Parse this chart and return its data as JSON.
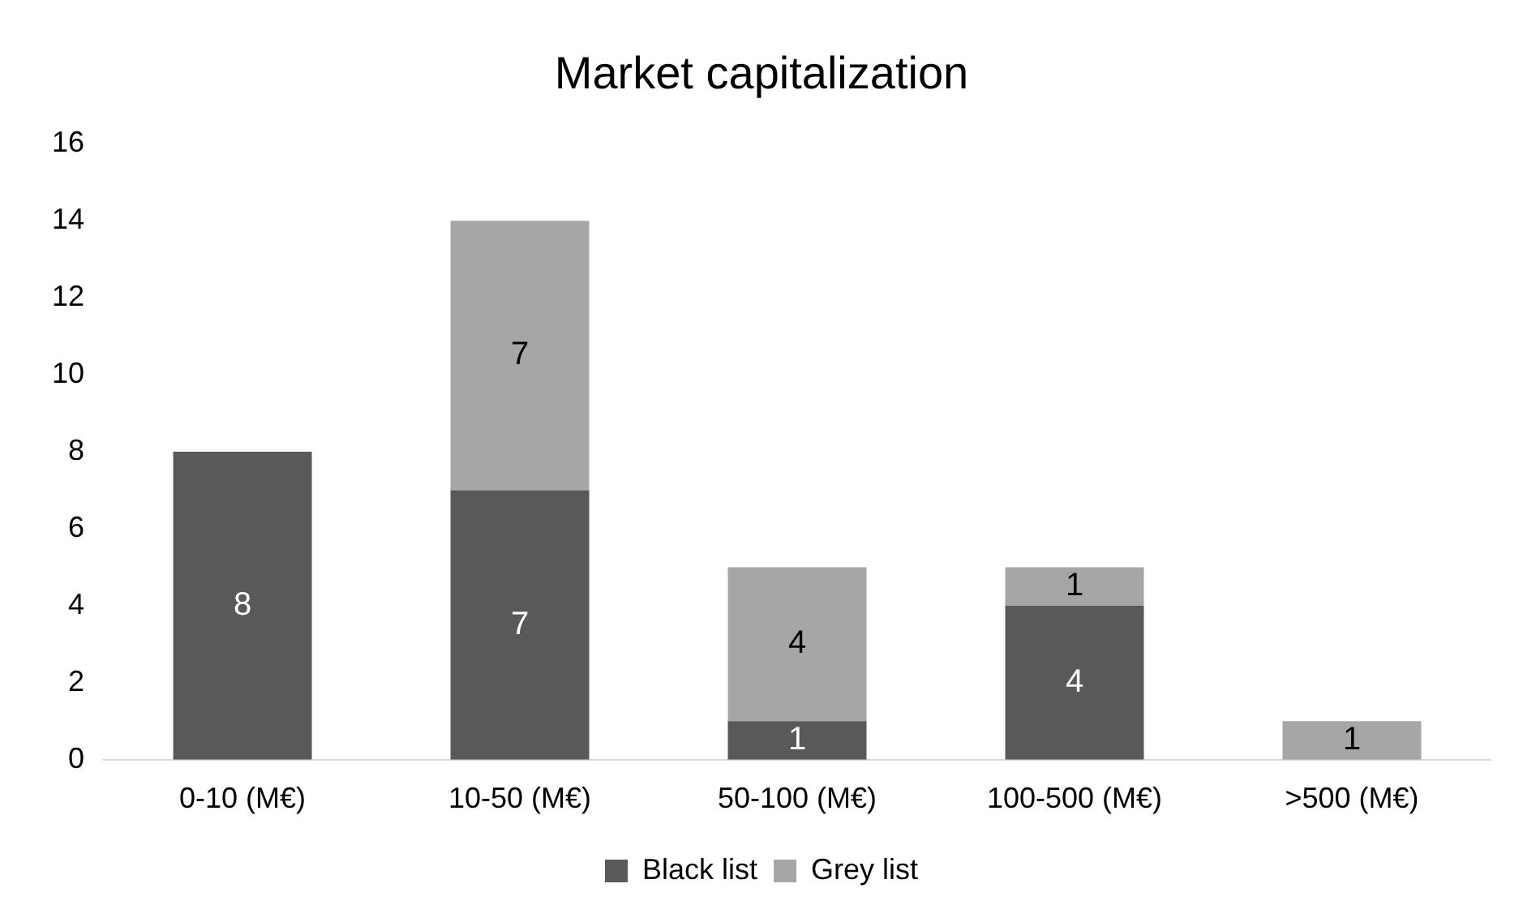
{
  "chart_data": {
    "type": "bar",
    "title": "Market capitalization",
    "stacked": true,
    "categories": [
      "0-10 (M€)",
      "10-50 (M€)",
      "50-100 (M€)",
      "100-500 (M€)",
      ">500 (M€)"
    ],
    "series": [
      {
        "name": "Black list",
        "color": "#595959",
        "values": [
          8,
          7,
          1,
          4,
          null
        ]
      },
      {
        "name": "Grey list",
        "color": "#a6a6a6",
        "values": [
          null,
          7,
          4,
          1,
          1
        ]
      }
    ],
    "ylim": [
      0,
      16
    ],
    "yticks": [
      0,
      2,
      4,
      6,
      8,
      10,
      12,
      14,
      16
    ],
    "grid": false,
    "legend": "bottom",
    "data_labels": true
  }
}
